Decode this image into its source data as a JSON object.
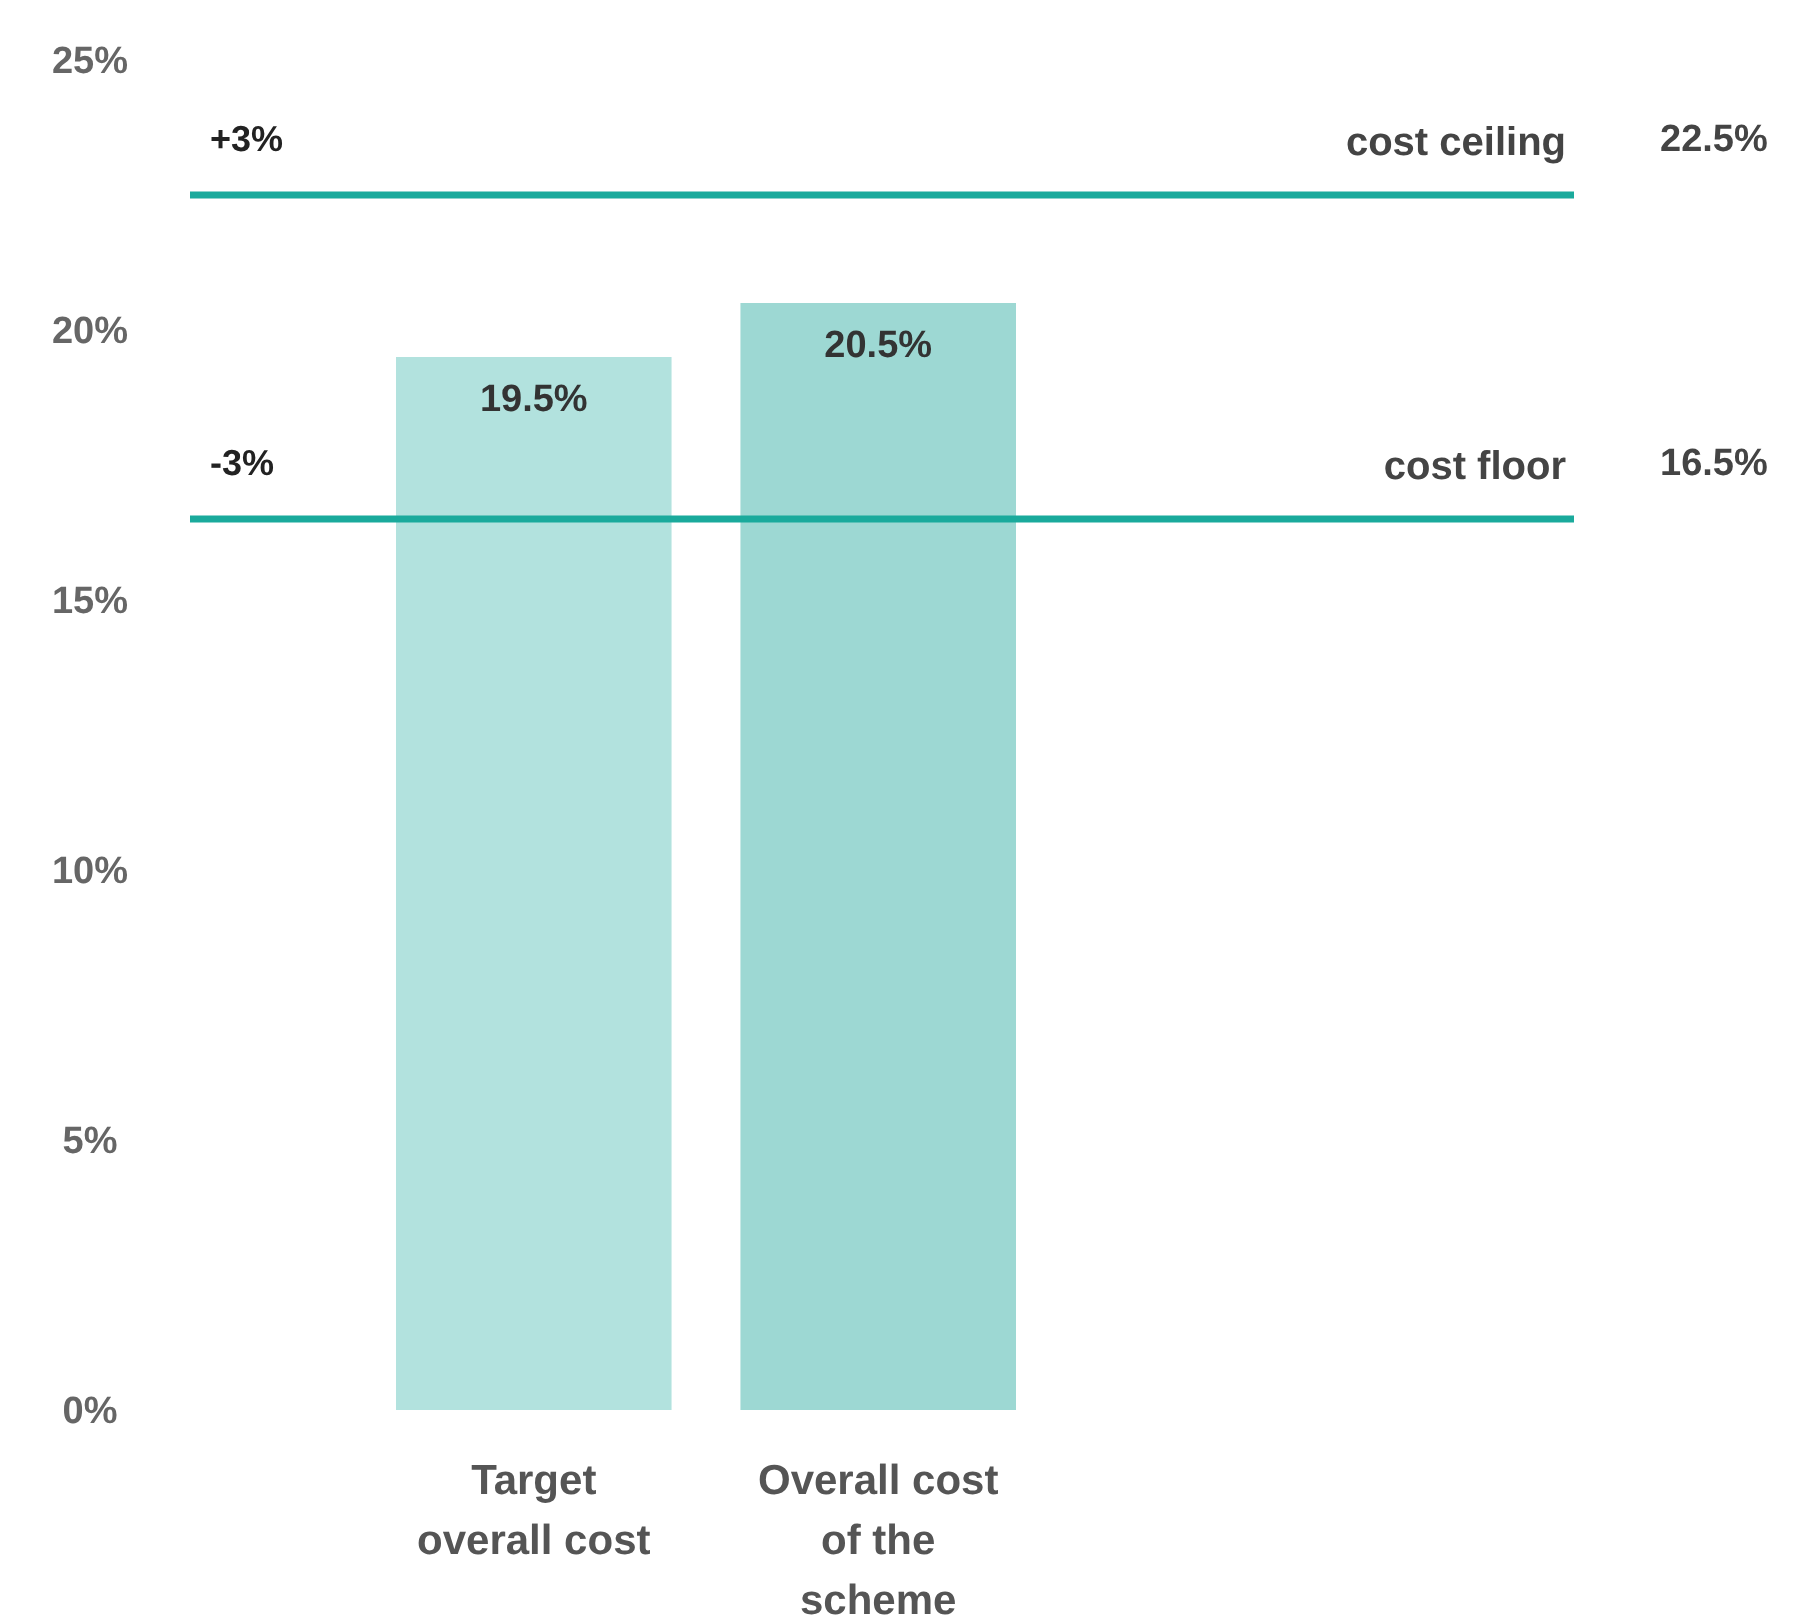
{
  "chart_data": {
    "type": "bar",
    "categories": [
      "Target overall cost",
      "Overall cost of the scheme"
    ],
    "values": [
      19.5,
      20.5
    ],
    "colors": [
      "#b2e2de",
      "#9dd8d3"
    ],
    "value_labels": [
      "19.5%",
      "20.5%"
    ],
    "ylim": [
      0,
      25
    ],
    "yticks": [
      {
        "value": 0,
        "label": "0%"
      },
      {
        "value": 5,
        "label": "5%"
      },
      {
        "value": 10,
        "label": "10%"
      },
      {
        "value": 15,
        "label": "15%"
      },
      {
        "value": 20,
        "label": "20%"
      },
      {
        "value": 25,
        "label": "25%"
      }
    ],
    "ref_lines": [
      {
        "axis": "y",
        "value": 22.5,
        "label": "cost ceiling",
        "color": "#1aaa9c"
      },
      {
        "axis": "y",
        "value": 16.5,
        "label": "cost floor",
        "color": "#1aaa9c"
      }
    ],
    "annotations": [
      {
        "text": "+3%",
        "y": 22.5
      },
      {
        "text": "-3%",
        "y": 16.5
      },
      "22.5%",
      "16.5%"
    ]
  }
}
